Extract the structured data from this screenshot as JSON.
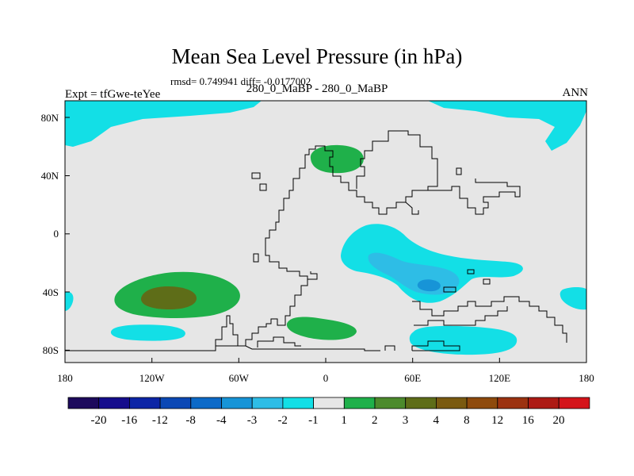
{
  "title": "Mean Sea Level Pressure (in hPa)",
  "stats": "rmsd= 0.749941 diff= -0.0177002",
  "experiment": "Expt = tfGwe-teYee",
  "case_label": "280_0_MaBP - 280_0_MaBP",
  "season": "ANN",
  "colors": {
    "background_field": "#e6e6e6",
    "coastline": "#000000",
    "colorbar": [
      "#1d0a5c",
      "#150d8c",
      "#0c25a6",
      "#0b48b5",
      "#0c6ac8",
      "#1794d7",
      "#2ebde6",
      "#13dfe6",
      "#e6e6e6",
      "#1fb04a",
      "#4c8a2c",
      "#5e6d18",
      "#7a5a10",
      "#8e4a0c",
      "#9c3210",
      "#ad1a14",
      "#d4141a"
    ]
  },
  "chart_data": {
    "type": "contour-map",
    "projection": "cylindrical equidistant",
    "lon_range": [
      -180,
      180
    ],
    "lat_range": [
      -90,
      90
    ],
    "x_ticks": [
      "180",
      "120W",
      "60W",
      "0",
      "60E",
      "120E",
      "180"
    ],
    "y_ticks": [
      "80N",
      "40N",
      "0",
      "40S",
      "80S"
    ],
    "colorbar_labels": [
      "-20",
      "-16",
      "-12",
      "-8",
      "-4",
      "-3",
      "-2",
      "-1",
      "1",
      "2",
      "3",
      "4",
      "8",
      "12",
      "16",
      "20"
    ],
    "regions": [
      {
        "name": "north-polar-band",
        "sign": "negative",
        "levels": "-2 to -1"
      },
      {
        "name": "north-atlantic-high",
        "sign": "positive",
        "levels": "1 to 2"
      },
      {
        "name": "indian-ocean-low",
        "sign": "negative",
        "levels": "-3 to -1",
        "min_approx": -4
      },
      {
        "name": "south-pacific-high",
        "sign": "positive",
        "levels": "1 to 4",
        "max_approx": 3
      },
      {
        "name": "southern-ocean-lows",
        "sign": "negative",
        "levels": "-2 to -1"
      },
      {
        "name": "south-atlantic-high",
        "sign": "positive",
        "levels": "1 to 2"
      }
    ]
  }
}
